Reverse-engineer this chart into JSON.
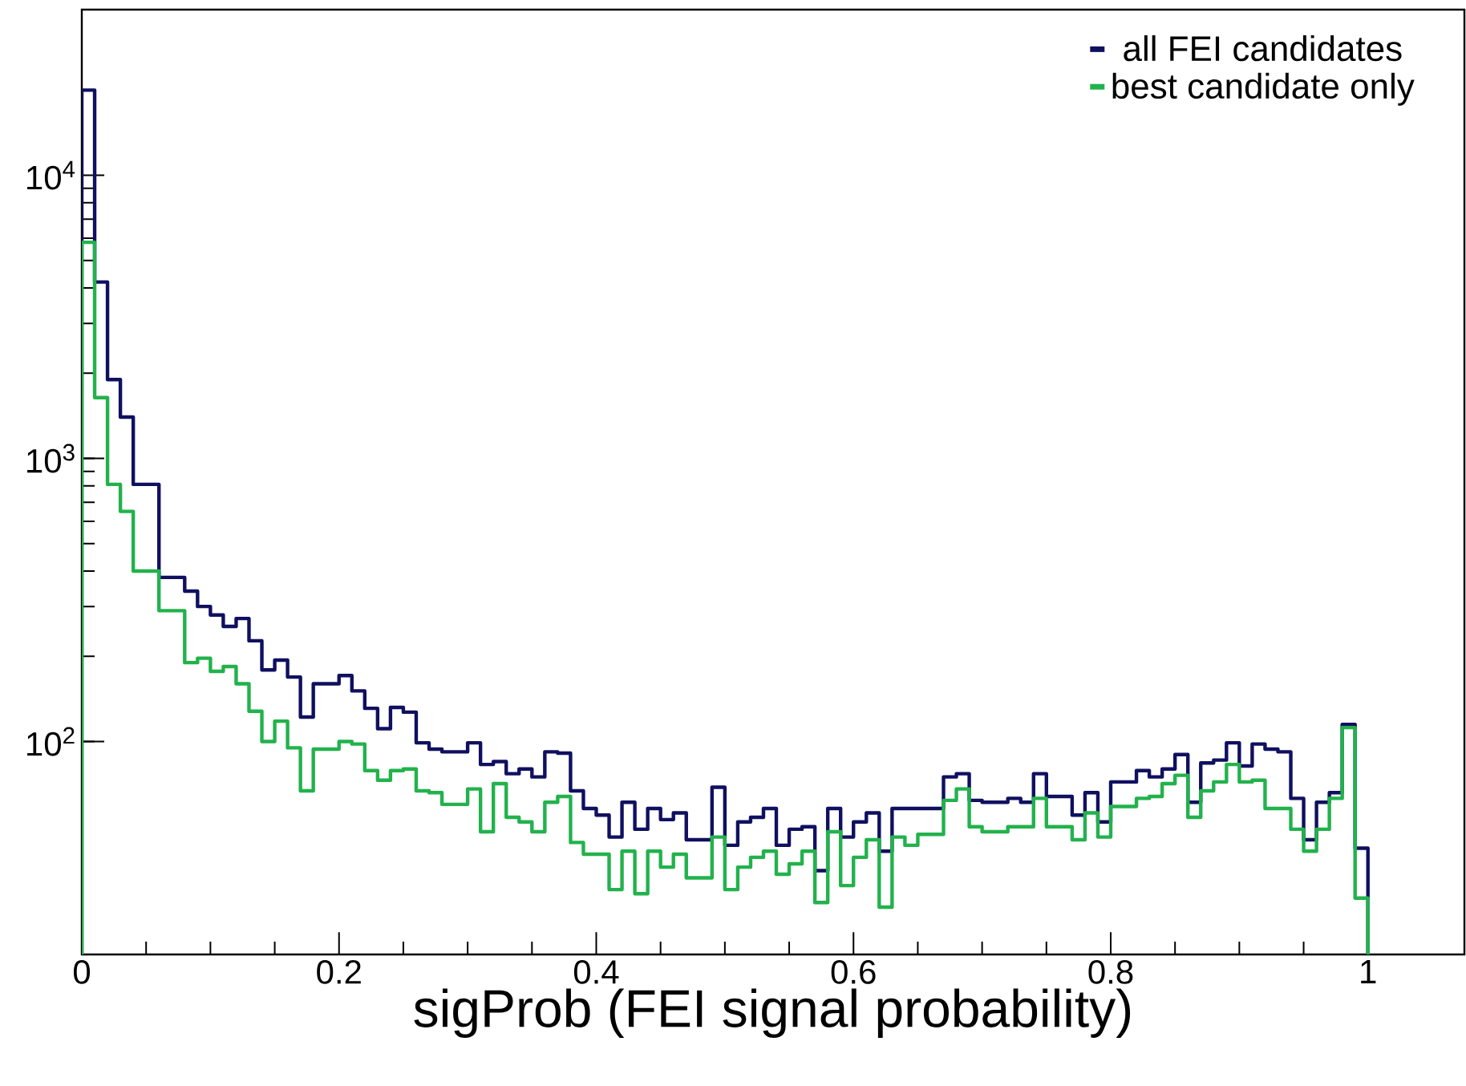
{
  "chart_data": {
    "type": "histogram",
    "xlabel": "sigProb (FEI signal probability)",
    "log": "y",
    "legend": "top right",
    "bins": [
      0,
      0.01,
      0.02,
      0.03,
      0.04,
      0.05,
      0.06,
      0.07,
      0.08,
      0.09,
      0.1,
      0.11,
      0.12,
      0.13,
      0.14,
      0.15,
      0.16,
      0.17,
      0.18,
      0.19,
      0.2,
      0.21,
      0.22,
      0.23,
      0.24,
      0.25,
      0.26,
      0.27,
      0.28,
      0.29,
      0.3,
      0.31,
      0.32,
      0.33,
      0.34,
      0.35,
      0.36,
      0.37,
      0.38,
      0.39,
      0.4,
      0.41,
      0.42,
      0.43,
      0.44,
      0.45,
      0.46,
      0.47,
      0.48,
      0.49,
      0.5,
      0.51,
      0.52,
      0.53,
      0.54,
      0.55,
      0.56,
      0.57,
      0.58,
      0.59,
      0.6,
      0.61,
      0.62,
      0.63,
      0.64,
      0.65,
      0.66,
      0.67,
      0.68,
      0.69,
      0.7,
      0.71,
      0.72,
      0.73,
      0.74,
      0.75,
      0.76,
      0.77,
      0.78,
      0.79,
      0.8,
      0.81,
      0.82,
      0.83,
      0.84,
      0.85,
      0.86,
      0.87,
      0.88,
      0.89,
      0.9,
      0.91,
      0.92,
      0.93,
      0.94,
      0.95,
      0.96,
      0.97,
      0.98,
      0.99,
      1
    ],
    "series": [
      {
        "name": "all FEI candidates",
        "color": "#101060",
        "values": [
          20000,
          4200,
          1900,
          1400,
          810,
          810,
          380,
          380,
          340,
          300,
          280,
          255,
          272,
          227,
          179,
          194,
          169,
          122,
          160,
          160,
          171,
          151,
          131,
          111,
          132,
          127,
          99,
          94,
          92,
          92,
          99,
          83,
          85,
          77,
          80,
          75,
          92,
          91,
          67,
          58,
          55,
          46,
          61,
          49,
          58,
          53,
          56,
          45,
          45,
          69,
          43,
          52,
          54,
          58,
          43,
          49,
          50,
          35,
          58,
          46,
          52,
          56,
          41,
          58,
          58,
          58,
          58,
          75,
          77,
          62,
          61,
          61,
          63,
          61,
          77,
          64,
          64,
          55,
          66,
          52,
          72,
          72,
          79,
          75,
          80,
          90,
          61,
          84,
          86,
          99,
          82,
          98,
          94,
          92,
          63,
          45,
          61,
          66,
          115,
          42
        ]
      },
      {
        "name": "best candidate only",
        "color": "#22b24c",
        "values": [
          5800,
          1640,
          810,
          650,
          400,
          400,
          290,
          290,
          190,
          197,
          177,
          184,
          160,
          128,
          100,
          118,
          95,
          67,
          94,
          94,
          100,
          98,
          79,
          73,
          79,
          80,
          67,
          66,
          60,
          60,
          68,
          48,
          71,
          54,
          52,
          48,
          61,
          64,
          44,
          40,
          40,
          30,
          41,
          29,
          41,
          36,
          40,
          33,
          33,
          46,
          30,
          36,
          39,
          41,
          34,
          37,
          41,
          27,
          48,
          31,
          39,
          45,
          26,
          46,
          43,
          47,
          47,
          62,
          68,
          50,
          48,
          48,
          50,
          50,
          63,
          50,
          50,
          45,
          56,
          46,
          59,
          59,
          63,
          64,
          71,
          76,
          54,
          67,
          72,
          83,
          72,
          73,
          58,
          58,
          49,
          41,
          49,
          63,
          112,
          28
        ]
      }
    ],
    "xlim": [
      0,
      1.075
    ],
    "ylim": [
      17.7,
      38500
    ],
    "xticks": [
      0,
      0.2,
      0.4,
      0.6,
      0.8,
      1
    ],
    "yticks": [
      {
        "value": 100,
        "label": "10$^{2}$"
      },
      {
        "value": 1000,
        "label": "10$^{3}$"
      },
      {
        "value": 10000,
        "label": "10$^{4}$"
      }
    ]
  }
}
